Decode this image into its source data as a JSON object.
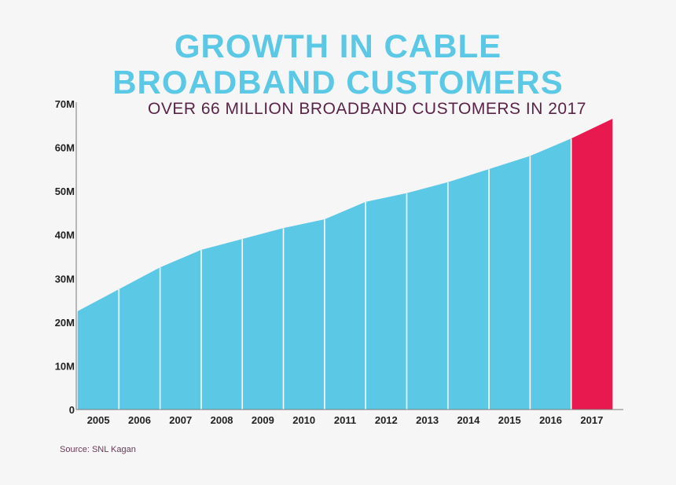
{
  "header": {
    "title_line1": "GROWTH IN CABLE",
    "title_line2": "BROADBAND CUSTOMERS",
    "subtitle": "OVER 66 MILLION BROADBAND CUSTOMERS IN 2017"
  },
  "footer": {
    "source": "Source: SNL Kagan"
  },
  "chart_data": {
    "type": "area",
    "title": "GROWTH IN CABLE BROADBAND CUSTOMERS",
    "subtitle": "OVER 66 MILLION BROADBAND CUSTOMERS IN 2017",
    "categories": [
      "2005",
      "2006",
      "2007",
      "2008",
      "2009",
      "2010",
      "2011",
      "2012",
      "2013",
      "2014",
      "2015",
      "2016",
      "2017"
    ],
    "boundary_values": [
      22.5,
      27.5,
      32.5,
      36.5,
      39,
      41.5,
      43.5,
      47.5,
      49.5,
      52,
      55,
      58,
      62,
      66.5
    ],
    "ylim": [
      0,
      70
    ],
    "yticks": [
      0,
      10,
      20,
      30,
      40,
      50,
      60,
      70
    ],
    "ytick_labels": [
      "0",
      "10M",
      "20M",
      "30M",
      "40M",
      "50M",
      "60M",
      "70M"
    ],
    "highlight_category": "2017",
    "colors": {
      "area": "#5bc8e6",
      "highlight": "#e8194f",
      "divider": "#ffffff",
      "axis": "#7a7a7a"
    },
    "grid": false,
    "legend": "none"
  }
}
